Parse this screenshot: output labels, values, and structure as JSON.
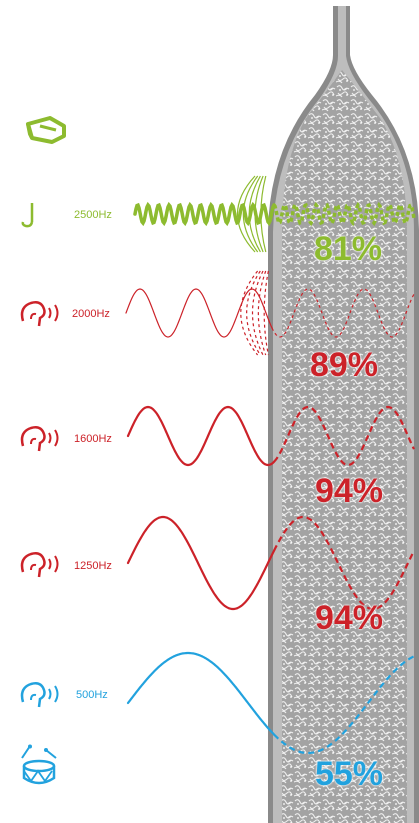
{
  "colors": {
    "green": "#8dbb2f",
    "red": "#cc2229",
    "blue": "#22a2de",
    "tube_gray": "#a8a8a8",
    "tube_edge": "#6a6a6a"
  },
  "icons": {
    "top": "whistle-icon",
    "sources": [
      "music-note-icon",
      "hearing-icon",
      "hearing-icon",
      "hearing-icon",
      "hearing-icon"
    ],
    "bottom": "drum-icon"
  },
  "bands": [
    {
      "frequency": "2500Hz",
      "attenuation": "81%",
      "color": "#8dbb2f",
      "style": "fast"
    },
    {
      "frequency": "2000Hz",
      "attenuation": "89%",
      "color": "#cc2229",
      "style": "thin"
    },
    {
      "frequency": "1600Hz",
      "attenuation": "94%",
      "color": "#cc2229",
      "style": "normal"
    },
    {
      "frequency": "1250Hz",
      "attenuation": "94%",
      "color": "#cc2229",
      "style": "normal"
    },
    {
      "frequency": "500Hz",
      "attenuation": "55%",
      "color": "#22a2de",
      "style": "slow"
    }
  ]
}
